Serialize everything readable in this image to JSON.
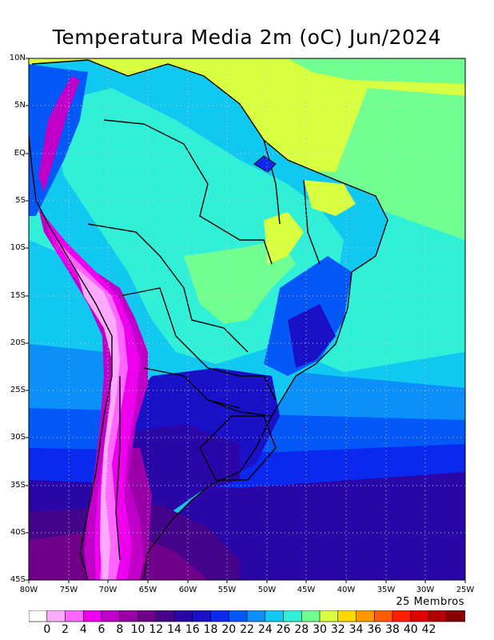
{
  "title": "Temperatura Media 2m (oC) Jun/2024",
  "members_label": "25 Membros",
  "lat_ticks": [
    "10N",
    "5N",
    "EQ",
    "5S",
    "10S",
    "15S",
    "20S",
    "25S",
    "30S",
    "35S",
    "40S",
    "45S"
  ],
  "lon_ticks": [
    "80W",
    "75W",
    "70W",
    "65W",
    "60W",
    "55W",
    "50W",
    "45W",
    "40W",
    "35W",
    "30W",
    "25W"
  ],
  "colorbar": {
    "labels": [
      "0",
      "2",
      "4",
      "6",
      "8",
      "10",
      "12",
      "14",
      "16",
      "18",
      "20",
      "22",
      "24",
      "26",
      "28",
      "30",
      "32",
      "34",
      "36",
      "38",
      "40",
      "42"
    ],
    "colors": [
      "#ffffff",
      "#ffaaff",
      "#ff66ff",
      "#ee00ee",
      "#c000c8",
      "#9a00a8",
      "#70008a",
      "#44048c",
      "#2a06a8",
      "#1a10c8",
      "#0a28ee",
      "#0458f8",
      "#0a90f8",
      "#10c8f0",
      "#30f0d8",
      "#70ff90",
      "#d8ff40",
      "#ffd800",
      "#ff9800",
      "#ff5a00",
      "#ff1e00",
      "#e00000",
      "#b00000",
      "#880000"
    ]
  },
  "map": {
    "region": "South America, 80W-25W, 10N-45S",
    "field": "2 m mean air temperature",
    "gridlines": "dotted every 5 degrees"
  }
}
